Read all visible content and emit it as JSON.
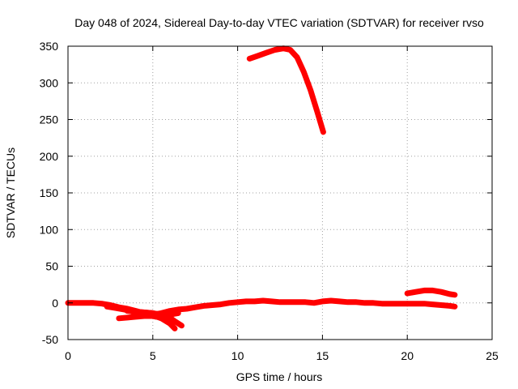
{
  "chart_data": {
    "type": "line",
    "title": "Day 048 of 2024, Sidereal Day-to-day VTEC variation (SDTVAR) for receiver rvso",
    "xlabel": "GPS time / hours",
    "ylabel": "SDTVAR / TECUs",
    "xlim": [
      0,
      25
    ],
    "ylim": [
      -50,
      350
    ],
    "xticks": [
      "0",
      "5",
      "10",
      "15",
      "20",
      "25"
    ],
    "yticks": [
      "-50",
      "0",
      "50",
      "100",
      "150",
      "200",
      "250",
      "300",
      "350"
    ],
    "grid": true,
    "color": "#ff0000",
    "series": [
      {
        "x": [
          10.7,
          11.2,
          11.7,
          12.2,
          12.7,
          13.1,
          13.5,
          13.9,
          14.3,
          14.7,
          15.05
        ],
        "y": [
          333,
          337,
          341,
          345,
          347,
          345,
          335,
          315,
          290,
          260,
          233
        ]
      },
      {
        "x": [
          0,
          0.5,
          1,
          1.5,
          2,
          2.5,
          3,
          3.5,
          4,
          4.5,
          5,
          5.5,
          6,
          6.5,
          7,
          7.5,
          8,
          8.5,
          9,
          9.5,
          10,
          10.5,
          11,
          11.5,
          12,
          12.5,
          13,
          13.5,
          14,
          14.5,
          15,
          15.5,
          16,
          16.5,
          17,
          17.5,
          18,
          18.5,
          19,
          19.5,
          20
        ],
        "y": [
          0,
          0,
          0,
          0,
          -1,
          -3,
          -6,
          -8,
          -11,
          -14,
          -16,
          -14,
          -11,
          -9,
          -8,
          -6,
          -4,
          -3,
          -2,
          0,
          1,
          2,
          2,
          3,
          2,
          1,
          1,
          1,
          1,
          0,
          2,
          3,
          2,
          1,
          1,
          0,
          0,
          -1,
          -1,
          -1,
          -1
        ]
      },
      {
        "x": [
          2.3,
          2.8,
          3.3,
          3.8,
          4.3,
          4.8,
          5.2
        ],
        "y": [
          -5,
          -7,
          -9,
          -12,
          -14,
          -17,
          -19
        ]
      },
      {
        "x": [
          3,
          3.5,
          4,
          4.5,
          5,
          5.5,
          6,
          6.5
        ],
        "y": [
          -21,
          -20,
          -19,
          -18,
          -18,
          -17,
          -16,
          -14
        ]
      },
      {
        "x": [
          4,
          4.5,
          5,
          5.5,
          6,
          6.3,
          6.7
        ],
        "y": [
          -12,
          -13,
          -14,
          -17,
          -20,
          -25,
          -31
        ]
      },
      {
        "x": [
          4.5,
          5,
          5.5,
          6,
          6.3
        ],
        "y": [
          -14,
          -17,
          -21,
          -28,
          -35
        ]
      },
      {
        "x": [
          3.5,
          4,
          4.5,
          5,
          5.5
        ],
        "y": [
          -11,
          -12,
          -13,
          -14,
          -16
        ]
      },
      {
        "x": [
          20,
          20.5,
          21,
          21.5,
          22,
          22.5,
          22.8
        ],
        "y": [
          13,
          15,
          17,
          17,
          15,
          12,
          11
        ]
      },
      {
        "x": [
          20,
          20.5,
          21,
          21.5,
          22,
          22.5,
          22.8
        ],
        "y": [
          -1,
          -1,
          -1,
          -2,
          -3,
          -4,
          -5
        ]
      }
    ]
  }
}
